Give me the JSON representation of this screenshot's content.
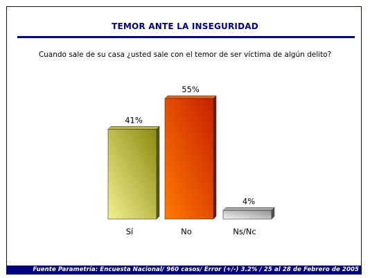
{
  "header": {
    "title": "TEMOR ANTE LA INSEGURIDAD",
    "question": "Cuando sale de su casa ¿usted sale con el temor de ser víctima de algún delito?"
  },
  "footer": {
    "source": "Fuente Parametría: Encuesta Nacional/ 960 casos/ Error  (+/-)  3.2% / 25 al 28 de Febrero de 2005"
  },
  "chart_data": {
    "type": "bar",
    "title": "TEMOR ANTE LA INSEGURIDAD",
    "categories": [
      "Sí",
      "No",
      "Ns/Nc"
    ],
    "values": [
      41,
      55,
      4
    ],
    "data_labels": [
      "41%",
      "55%",
      "4%"
    ],
    "ylim": [
      0,
      60
    ],
    "grid": false,
    "colors": [
      {
        "light": "#f2f090",
        "dark": "#8a8c10",
        "side": "#5a5a08",
        "top": "#b8b840"
      },
      {
        "light": "#ff7a00",
        "dark": "#c82000",
        "side": "#7a1400",
        "top": "#d86a2a"
      },
      {
        "light": "#f4f4f4",
        "dark": "#909090",
        "side": "#505050",
        "top": "#a8a8a8"
      }
    ]
  }
}
